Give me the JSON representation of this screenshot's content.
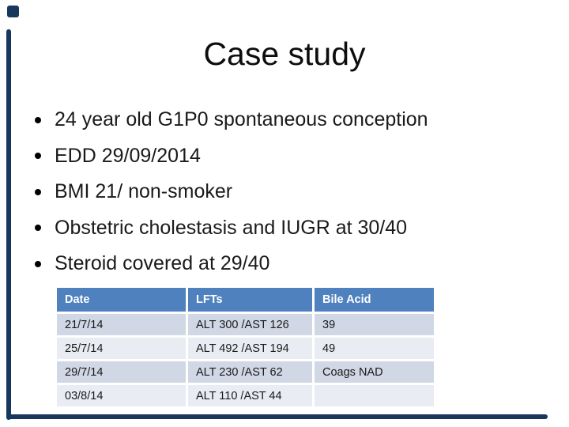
{
  "slide": {
    "title": "Case study",
    "bullets": [
      "24 year old G1P0 spontaneous conception",
      "EDD 29/09/2014",
      "BMI 21/ non-smoker",
      "Obstetric cholestasis and IUGR at 30/40",
      "Steroid covered at 29/40"
    ],
    "table": {
      "headers": [
        "Date",
        "LFTs",
        "Bile Acid"
      ],
      "rows": [
        [
          "21/7/14",
          "ALT 300 /AST 126",
          "39"
        ],
        [
          "25/7/14",
          "ALT 492 /AST 194",
          "49"
        ],
        [
          "29/7/14",
          "ALT 230 /AST 62",
          "Coags NAD"
        ],
        [
          "03/8/14",
          "ALT 110 /AST 44",
          ""
        ]
      ]
    }
  },
  "colors": {
    "header_bg": "#4e81bd",
    "row_dark": "#d0d7e5",
    "row_light": "#e9ecf3",
    "accent_navy": "#17375d",
    "header_text": "#ffffff",
    "body_text": "#1a1a1a"
  }
}
